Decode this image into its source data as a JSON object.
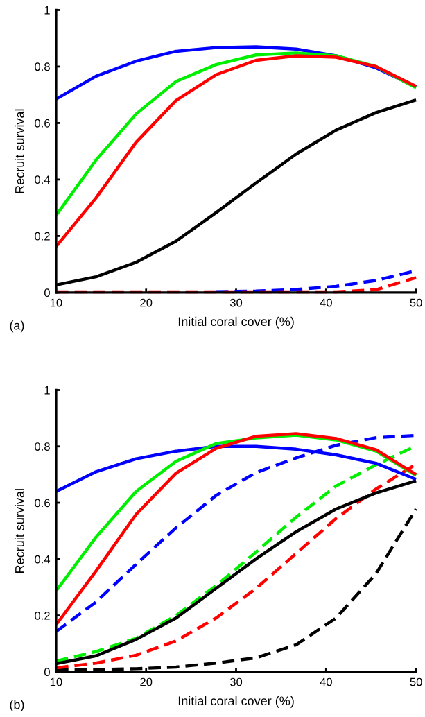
{
  "chart_data": [
    {
      "type": "line",
      "xlabel": "Initial coral cover (%)",
      "ylabel": "Recruit survival",
      "annotations": [
        "(a)"
      ],
      "x": [
        10,
        14.44,
        18.89,
        23.33,
        27.78,
        32.22,
        36.67,
        41.11,
        45.56,
        50
      ],
      "xlim": [
        10,
        50
      ],
      "xticks": [
        10,
        20,
        30,
        40,
        50
      ],
      "ylim": [
        0,
        1
      ],
      "yticks": [
        0,
        {
          "value": 0.2,
          "label": "0.2"
        },
        {
          "value": 0.4,
          "label": "0.4"
        },
        {
          "value": 0.6,
          "label": "0.6"
        },
        {
          "value": 0.8,
          "label": "0.8"
        },
        1
      ],
      "grid": false,
      "marker": "none",
      "series": [
        {
          "color": "#0000ff",
          "line_style": "dashed",
          "values": [
            null,
            null,
            null,
            null,
            0.003,
            0.005,
            0.011,
            0.022,
            0.043,
            0.077
          ]
        },
        {
          "color": "#ff0000",
          "line_style": "dashed",
          "values": [
            0.002,
            0.002,
            0.002,
            0.002,
            0.002,
            0.002,
            0.002,
            0.002,
            0.01,
            0.053
          ]
        },
        {
          "color": "#000000",
          "line_style": "solid",
          "values": [
            0.027,
            0.056,
            0.107,
            0.182,
            0.283,
            0.388,
            0.49,
            0.575,
            0.637,
            0.682
          ]
        },
        {
          "color": "#0000ff",
          "line_style": "solid",
          "values": [
            0.685,
            0.766,
            0.819,
            0.854,
            0.867,
            0.87,
            0.862,
            0.838,
            0.795,
            0.728
          ]
        },
        {
          "color": "#00ee00",
          "line_style": "solid",
          "values": [
            0.273,
            0.469,
            0.632,
            0.747,
            0.807,
            0.841,
            0.848,
            0.838,
            0.8,
            0.725
          ]
        },
        {
          "color": "#ff0000",
          "line_style": "solid",
          "values": [
            0.163,
            0.335,
            0.532,
            0.68,
            0.771,
            0.822,
            0.838,
            0.833,
            0.8,
            0.73
          ]
        }
      ]
    },
    {
      "type": "line",
      "xlabel": "Initial coral cover (%)",
      "ylabel": "Recruit survival",
      "annotations": [
        "(b)"
      ],
      "x": [
        10,
        14.44,
        18.89,
        23.33,
        27.78,
        32.22,
        36.67,
        41.11,
        45.56,
        50
      ],
      "xlim": [
        10,
        50
      ],
      "xticks": [
        10,
        20,
        30,
        40,
        50
      ],
      "ylim": [
        0,
        1
      ],
      "yticks": [
        0,
        {
          "value": 0.2,
          "label": "0.2"
        },
        {
          "value": 0.4,
          "label": "0.4"
        },
        {
          "value": 0.6,
          "label": "0.6"
        },
        {
          "value": 0.8,
          "label": "0.8"
        },
        1
      ],
      "grid": false,
      "marker": "none",
      "series": [
        {
          "color": "#000000",
          "line_style": "dashed",
          "values": [
            0.008,
            0.008,
            0.011,
            0.017,
            0.031,
            0.05,
            0.096,
            0.191,
            0.349,
            0.578
          ]
        },
        {
          "color": "#ff0000",
          "line_style": "dashed",
          "values": [
            0.014,
            0.031,
            0.059,
            0.11,
            0.191,
            0.296,
            0.42,
            0.544,
            0.649,
            0.737
          ]
        },
        {
          "color": "#00ee00",
          "line_style": "dashed",
          "values": [
            0.038,
            0.072,
            0.119,
            0.2,
            0.306,
            0.425,
            0.549,
            0.659,
            0.735,
            0.802
          ]
        },
        {
          "color": "#000000",
          "line_style": "solid",
          "values": [
            0.029,
            0.057,
            0.115,
            0.191,
            0.296,
            0.401,
            0.497,
            0.578,
            0.635,
            0.678
          ]
        },
        {
          "color": "#0000ff",
          "line_style": "dashed",
          "values": [
            0.143,
            0.248,
            0.382,
            0.511,
            0.626,
            0.707,
            0.759,
            0.804,
            0.831,
            0.839
          ]
        },
        {
          "color": "#0000ff",
          "line_style": "solid",
          "values": [
            0.64,
            0.71,
            0.756,
            0.783,
            0.8,
            0.8,
            0.79,
            0.77,
            0.74,
            0.683
          ]
        },
        {
          "color": "#00ee00",
          "line_style": "solid",
          "values": [
            0.287,
            0.478,
            0.64,
            0.747,
            0.81,
            0.83,
            0.84,
            0.823,
            0.783,
            0.697
          ]
        },
        {
          "color": "#ff0000",
          "line_style": "solid",
          "values": [
            0.167,
            0.358,
            0.559,
            0.705,
            0.793,
            0.836,
            0.845,
            0.828,
            0.788,
            0.7
          ]
        }
      ]
    }
  ]
}
